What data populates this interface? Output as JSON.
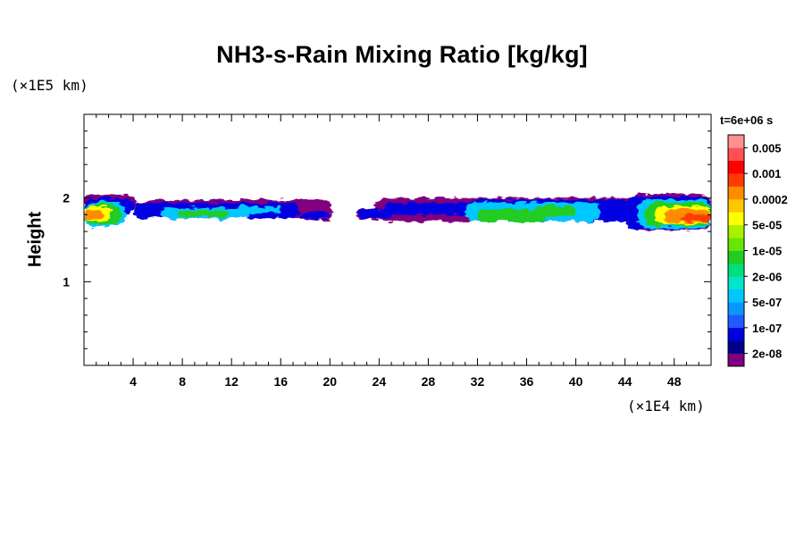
{
  "chart_data": {
    "type": "heatmap",
    "title": "NH3-s-Rain Mixing Ratio [kg/kg]",
    "xlabel": "",
    "ylabel": "Height",
    "x_unit": "(×1E4 km)",
    "y_unit": "(×1E5 km)",
    "time_label": "t=6e+06 s",
    "xlim": [
      0,
      51
    ],
    "ylim": [
      0,
      3
    ],
    "x_ticks": [
      4,
      8,
      12,
      16,
      20,
      24,
      28,
      32,
      36,
      40,
      44,
      48
    ],
    "y_ticks": [
      1,
      2
    ],
    "colorbar": {
      "colors": [
        "#800080",
        "#00008b",
        "#0000e0",
        "#1e5aff",
        "#0a96ff",
        "#00c8ff",
        "#00e6c8",
        "#00e07a",
        "#22cc22",
        "#66e600",
        "#aaf000",
        "#ffff00",
        "#ffc800",
        "#ff8c00",
        "#ff3c00",
        "#ff0000",
        "#ff5050",
        "#ff9090"
      ],
      "labels": [
        "2e-08",
        "1e-07",
        "5e-07",
        "2e-06",
        "1e-05",
        "5e-05",
        "0.0002",
        "0.001",
        "0.005"
      ],
      "legend_position": "right"
    },
    "layers": [
      {
        "level": 0,
        "color": "#800080",
        "blobs": [
          {
            "x0": 0.0,
            "x1": 4.2,
            "y0": 1.85,
            "y1": 2.04
          },
          {
            "x0": 4.5,
            "x1": 20.1,
            "y0": 1.76,
            "y1": 1.98
          },
          {
            "x0": 17.6,
            "x1": 20.2,
            "y0": 1.74,
            "y1": 1.84
          },
          {
            "x0": 22.2,
            "x1": 25.4,
            "y0": 1.75,
            "y1": 1.87
          },
          {
            "x0": 23.6,
            "x1": 51.0,
            "y0": 1.72,
            "y1": 2.0
          },
          {
            "x0": 44.4,
            "x1": 51.0,
            "y0": 1.62,
            "y1": 2.05
          }
        ]
      },
      {
        "level": 1,
        "color": "#0000e0",
        "blobs": [
          {
            "x0": 0.0,
            "x1": 4.0,
            "y0": 1.8,
            "y1": 2.0
          },
          {
            "x0": 4.0,
            "x1": 17.5,
            "y0": 1.76,
            "y1": 1.94
          },
          {
            "x0": 17.6,
            "x1": 20.0,
            "y0": 1.75,
            "y1": 1.83
          },
          {
            "x0": 22.3,
            "x1": 25.2,
            "y0": 1.76,
            "y1": 1.86
          },
          {
            "x0": 24.4,
            "x1": 32.0,
            "y0": 1.8,
            "y1": 1.94
          },
          {
            "x0": 31.0,
            "x1": 44.5,
            "y0": 1.72,
            "y1": 1.98
          },
          {
            "x0": 44.0,
            "x1": 51.0,
            "y0": 1.63,
            "y1": 2.02
          }
        ]
      },
      {
        "level": 2,
        "color": "#00c8ff",
        "blobs": [
          {
            "x0": 0.0,
            "x1": 3.4,
            "y0": 1.66,
            "y1": 1.96
          },
          {
            "x0": 6.2,
            "x1": 13.5,
            "y0": 1.76,
            "y1": 1.88
          },
          {
            "x0": 12.5,
            "x1": 16.0,
            "y0": 1.82,
            "y1": 1.9
          },
          {
            "x0": 31.0,
            "x1": 42.0,
            "y0": 1.72,
            "y1": 1.95
          },
          {
            "x0": 45.0,
            "x1": 51.0,
            "y0": 1.64,
            "y1": 1.98
          }
        ]
      },
      {
        "level": 3,
        "color": "#22cc22",
        "blobs": [
          {
            "x0": 0.0,
            "x1": 3.0,
            "y0": 1.68,
            "y1": 1.93
          },
          {
            "x0": 7.6,
            "x1": 11.7,
            "y0": 1.78,
            "y1": 1.85
          },
          {
            "x0": 32.0,
            "x1": 37.6,
            "y0": 1.72,
            "y1": 1.86
          },
          {
            "x0": 36.8,
            "x1": 40.0,
            "y0": 1.78,
            "y1": 1.9
          },
          {
            "x0": 45.6,
            "x1": 51.0,
            "y0": 1.66,
            "y1": 1.95
          }
        ]
      },
      {
        "level": 4,
        "color": "#ffff00",
        "blobs": [
          {
            "x0": 0.0,
            "x1": 2.2,
            "y0": 1.72,
            "y1": 1.9
          },
          {
            "x0": 46.4,
            "x1": 51.0,
            "y0": 1.68,
            "y1": 1.9
          }
        ]
      },
      {
        "level": 5,
        "color": "#ff8c00",
        "blobs": [
          {
            "x0": 0.0,
            "x1": 1.6,
            "y0": 1.74,
            "y1": 1.86
          },
          {
            "x0": 47.2,
            "x1": 51.0,
            "y0": 1.7,
            "y1": 1.86
          }
        ]
      },
      {
        "level": 6,
        "color": "#ff3c00",
        "blobs": [
          {
            "x0": 48.6,
            "x1": 51.0,
            "y0": 1.72,
            "y1": 1.8
          }
        ]
      }
    ]
  }
}
